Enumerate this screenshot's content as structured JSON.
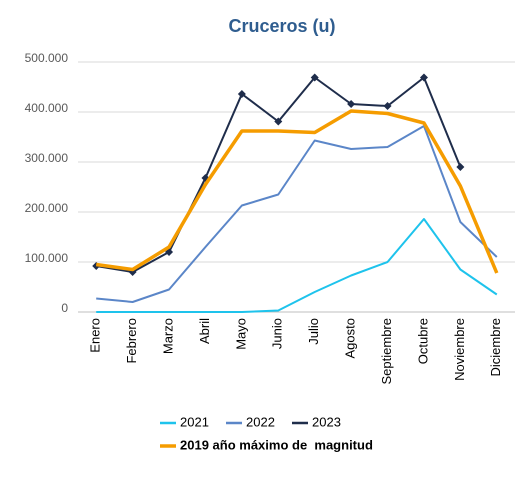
{
  "chart_data": {
    "type": "line",
    "title": "Cruceros (u)",
    "categories": [
      "Enero",
      "Febrero",
      "Marzo",
      "Abril",
      "Mayo",
      "Junio",
      "Julio",
      "Agosto",
      "Septiembre",
      "Octubre",
      "Noviembre",
      "Diciembre"
    ],
    "series": [
      {
        "name": "2021",
        "color": "#1ec3ec",
        "values": [
          0,
          0,
          0,
          0,
          0,
          3000,
          40000,
          73000,
          100000,
          186000,
          85000,
          35000
        ]
      },
      {
        "name": "2022",
        "color": "#5b86c8",
        "values": [
          27000,
          20000,
          45000,
          130000,
          213000,
          235000,
          343000,
          326000,
          330000,
          372000,
          180000,
          110000
        ]
      },
      {
        "name": "2023",
        "color": "#1f2d4b",
        "markers": true,
        "values": [
          92000,
          80000,
          120000,
          268000,
          436000,
          381000,
          469000,
          416000,
          412000,
          469000,
          290000,
          null
        ]
      },
      {
        "name": "2019 año máximo de  magnitud",
        "color": "#f59c00",
        "bold": true,
        "values": [
          95000,
          85000,
          130000,
          255000,
          362000,
          362000,
          359000,
          402000,
          397000,
          378000,
          252000,
          78000
        ]
      }
    ],
    "ylim": [
      0,
      500000
    ],
    "yticks": [
      0,
      {
        "value": 100000,
        "label": "100.000"
      },
      {
        "value": 200000,
        "label": "200.000"
      },
      {
        "value": 300000,
        "label": "300.000"
      },
      {
        "value": 400000,
        "label": "400.000"
      },
      {
        "value": 500000,
        "label": "500.000"
      }
    ],
    "grid": true,
    "legend": "bottom"
  }
}
